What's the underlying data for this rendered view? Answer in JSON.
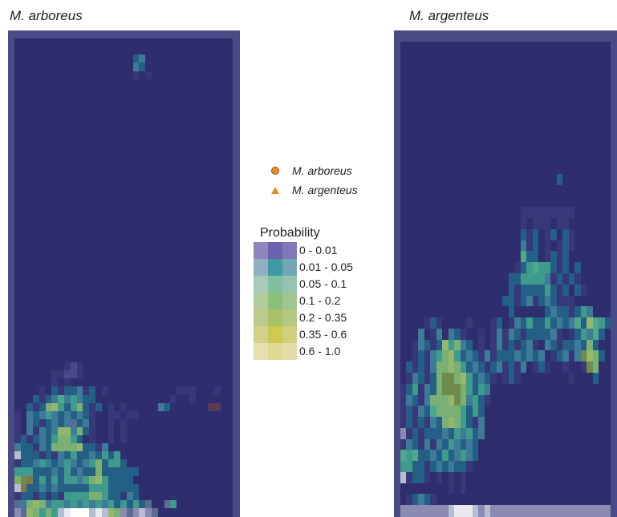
{
  "maps": [
    {
      "title": "M. arboreus"
    },
    {
      "title": "M. argenteus"
    }
  ],
  "legend": {
    "species": [
      {
        "label": "M. arboreus",
        "symbol": "circle-icon",
        "color": "#f08a24"
      },
      {
        "label": "M. argenteus",
        "symbol": "triangle-icon",
        "color": "#f08a24"
      }
    ],
    "probability_title": "Probability",
    "classes": [
      {
        "label": "0 - 0.01",
        "colors": [
          "#8f86c0",
          "#6b62b0",
          "#8178b8"
        ]
      },
      {
        "label": "0.01 - 0.05",
        "colors": [
          "#8fb0bf",
          "#3f9aa4",
          "#6fa8b4"
        ]
      },
      {
        "label": "0.05 - 0.1",
        "colors": [
          "#a8c8b8",
          "#7fc0a0",
          "#96c2b0"
        ]
      },
      {
        "label": "0.1 - 0.2",
        "colors": [
          "#b0cc9c",
          "#8cc07a",
          "#a0c690"
        ]
      },
      {
        "label": "0.2 - 0.35",
        "colors": [
          "#bccb8c",
          "#a8c268",
          "#b4c884"
        ]
      },
      {
        "label": "0.35 - 0.6",
        "colors": [
          "#d4d088",
          "#ccca50",
          "#d0cf7c"
        ]
      },
      {
        "label": "0.6 - 1.0",
        "colors": [
          "#e4e0b0",
          "#e0da94",
          "#e2dca8"
        ]
      }
    ]
  }
}
